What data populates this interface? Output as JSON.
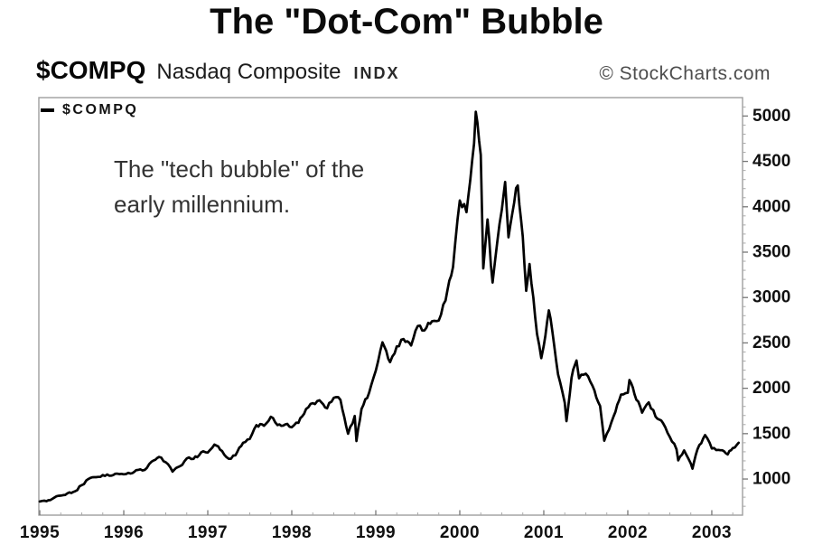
{
  "title": "The \"Dot-Com\" Bubble",
  "header": {
    "symbol": "$COMPQ",
    "name": "Nasdaq Composite",
    "index_tag": "INDX",
    "credit": "© StockCharts.com"
  },
  "legend": {
    "label": "$COMPQ"
  },
  "annotation": {
    "line1": "The \"tech bubble\" of the",
    "line2": "early millennium."
  },
  "colors": {
    "line": "#000000",
    "frame": "#9e9e9e",
    "major_tick": "#777777",
    "minor_tick": "#aaaaaa",
    "tick_label": "#101010",
    "annotation": "#333333",
    "credit": "#4d4d4d"
  },
  "chart_data": {
    "type": "line",
    "title": "The \"Dot-Com\" Bubble",
    "xlabel": "",
    "ylabel": "",
    "x_ticks": [
      1995,
      1996,
      1997,
      1998,
      1999,
      2000,
      2001,
      2002,
      2003
    ],
    "y_ticks": [
      1000,
      1500,
      2000,
      2500,
      3000,
      3500,
      4000,
      4500,
      5000
    ],
    "xlim": [
      1994.989,
      2003.366
    ],
    "ylim": [
      602,
      5203
    ],
    "grid": false,
    "legend_position": "top-left",
    "y_axis_side": "right",
    "series": [
      {
        "name": "$COMPQ",
        "color": "#000000",
        "points": [
          [
            1995.0,
            752
          ],
          [
            1995.08,
            755
          ],
          [
            1995.17,
            793
          ],
          [
            1995.25,
            817
          ],
          [
            1995.33,
            843
          ],
          [
            1995.42,
            865
          ],
          [
            1995.5,
            933
          ],
          [
            1995.58,
            1001
          ],
          [
            1995.67,
            1020
          ],
          [
            1995.75,
            1044
          ],
          [
            1995.83,
            1036
          ],
          [
            1995.92,
            1059
          ],
          [
            1996.0,
            1052
          ],
          [
            1996.08,
            1060
          ],
          [
            1996.17,
            1100
          ],
          [
            1996.25,
            1101
          ],
          [
            1996.33,
            1191
          ],
          [
            1996.42,
            1243
          ],
          [
            1996.5,
            1185
          ],
          [
            1996.58,
            1081
          ],
          [
            1996.67,
            1142
          ],
          [
            1996.75,
            1227
          ],
          [
            1996.83,
            1221
          ],
          [
            1996.92,
            1293
          ],
          [
            1997.0,
            1291
          ],
          [
            1997.08,
            1380
          ],
          [
            1997.17,
            1309
          ],
          [
            1997.25,
            1222
          ],
          [
            1997.33,
            1261
          ],
          [
            1997.42,
            1400
          ],
          [
            1997.5,
            1442
          ],
          [
            1997.58,
            1594
          ],
          [
            1997.67,
            1587
          ],
          [
            1997.75,
            1686
          ],
          [
            1997.83,
            1594
          ],
          [
            1997.92,
            1601
          ],
          [
            1998.0,
            1570
          ],
          [
            1998.08,
            1619
          ],
          [
            1998.17,
            1771
          ],
          [
            1998.25,
            1836
          ],
          [
            1998.33,
            1868
          ],
          [
            1998.42,
            1779
          ],
          [
            1998.5,
            1895
          ],
          [
            1998.58,
            1872
          ],
          [
            1998.67,
            1499
          ],
          [
            1998.75,
            1694
          ],
          [
            1998.77,
            1419
          ],
          [
            1998.83,
            1771
          ],
          [
            1998.92,
            1950
          ],
          [
            1999.0,
            2193
          ],
          [
            1999.08,
            2506
          ],
          [
            1999.17,
            2288
          ],
          [
            1999.25,
            2461
          ],
          [
            1999.33,
            2543
          ],
          [
            1999.42,
            2471
          ],
          [
            1999.5,
            2686
          ],
          [
            1999.58,
            2638
          ],
          [
            1999.67,
            2739
          ],
          [
            1999.75,
            2746
          ],
          [
            1999.83,
            2966
          ],
          [
            1999.92,
            3336
          ],
          [
            2000.0,
            4069
          ],
          [
            2000.08,
            3940
          ],
          [
            2000.17,
            4697
          ],
          [
            2000.19,
            5048
          ],
          [
            2000.25,
            4573
          ],
          [
            2000.28,
            3321
          ],
          [
            2000.33,
            3861
          ],
          [
            2000.39,
            3165
          ],
          [
            2000.42,
            3401
          ],
          [
            2000.5,
            3966
          ],
          [
            2000.54,
            4274
          ],
          [
            2000.58,
            3663
          ],
          [
            2000.67,
            4206
          ],
          [
            2000.69,
            4234
          ],
          [
            2000.75,
            3673
          ],
          [
            2000.79,
            3074
          ],
          [
            2000.83,
            3370
          ],
          [
            2000.92,
            2598
          ],
          [
            2000.97,
            2332
          ],
          [
            2001.0,
            2471
          ],
          [
            2001.06,
            2859
          ],
          [
            2001.08,
            2773
          ],
          [
            2001.17,
            2152
          ],
          [
            2001.25,
            1840
          ],
          [
            2001.27,
            1638
          ],
          [
            2001.33,
            2116
          ],
          [
            2001.39,
            2306
          ],
          [
            2001.42,
            2110
          ],
          [
            2001.5,
            2161
          ],
          [
            2001.58,
            2027
          ],
          [
            2001.67,
            1805
          ],
          [
            2001.72,
            1423
          ],
          [
            2001.75,
            1498
          ],
          [
            2001.83,
            1690
          ],
          [
            2001.92,
            1931
          ],
          [
            2002.0,
            1950
          ],
          [
            2002.02,
            2091
          ],
          [
            2002.08,
            1934
          ],
          [
            2002.17,
            1731
          ],
          [
            2002.25,
            1845
          ],
          [
            2002.33,
            1688
          ],
          [
            2002.42,
            1616
          ],
          [
            2002.5,
            1463
          ],
          [
            2002.58,
            1328
          ],
          [
            2002.6,
            1206
          ],
          [
            2002.67,
            1315
          ],
          [
            2002.75,
            1172
          ],
          [
            2002.77,
            1114
          ],
          [
            2002.83,
            1330
          ],
          [
            2002.92,
            1484
          ],
          [
            2003.0,
            1336
          ],
          [
            2003.08,
            1321
          ],
          [
            2003.19,
            1271
          ],
          [
            2003.25,
            1341
          ],
          [
            2003.32,
            1400
          ]
        ]
      }
    ]
  }
}
